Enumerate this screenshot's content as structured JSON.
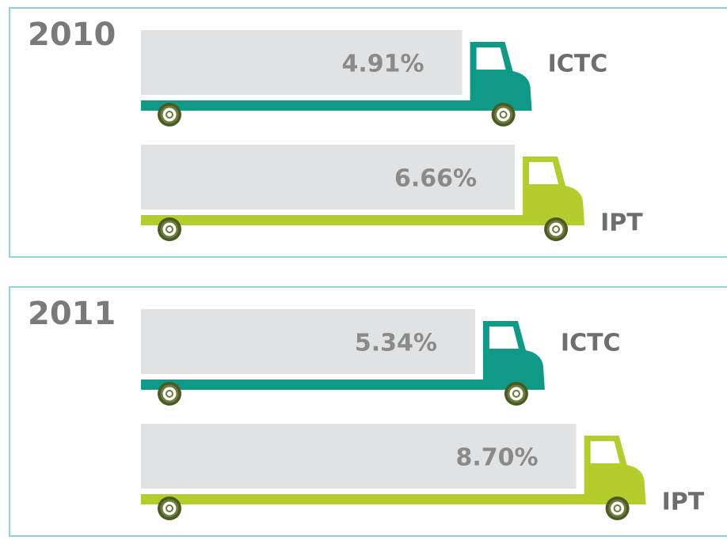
{
  "chart_data": [
    {
      "type": "bar",
      "title": "2010",
      "categories": [
        "ICTC",
        "IPT"
      ],
      "values": [
        4.91,
        6.66
      ],
      "value_labels": [
        "4.91%",
        "6.66%"
      ],
      "colors": [
        "#0f9a87",
        "#b4cc2c"
      ]
    },
    {
      "type": "bar",
      "title": "2011",
      "categories": [
        "ICTC",
        "IPT"
      ],
      "values": [
        5.34,
        8.7
      ],
      "value_labels": [
        "5.34%",
        "8.70%"
      ],
      "colors": [
        "#0f9a87",
        "#b4cc2c"
      ]
    }
  ]
}
